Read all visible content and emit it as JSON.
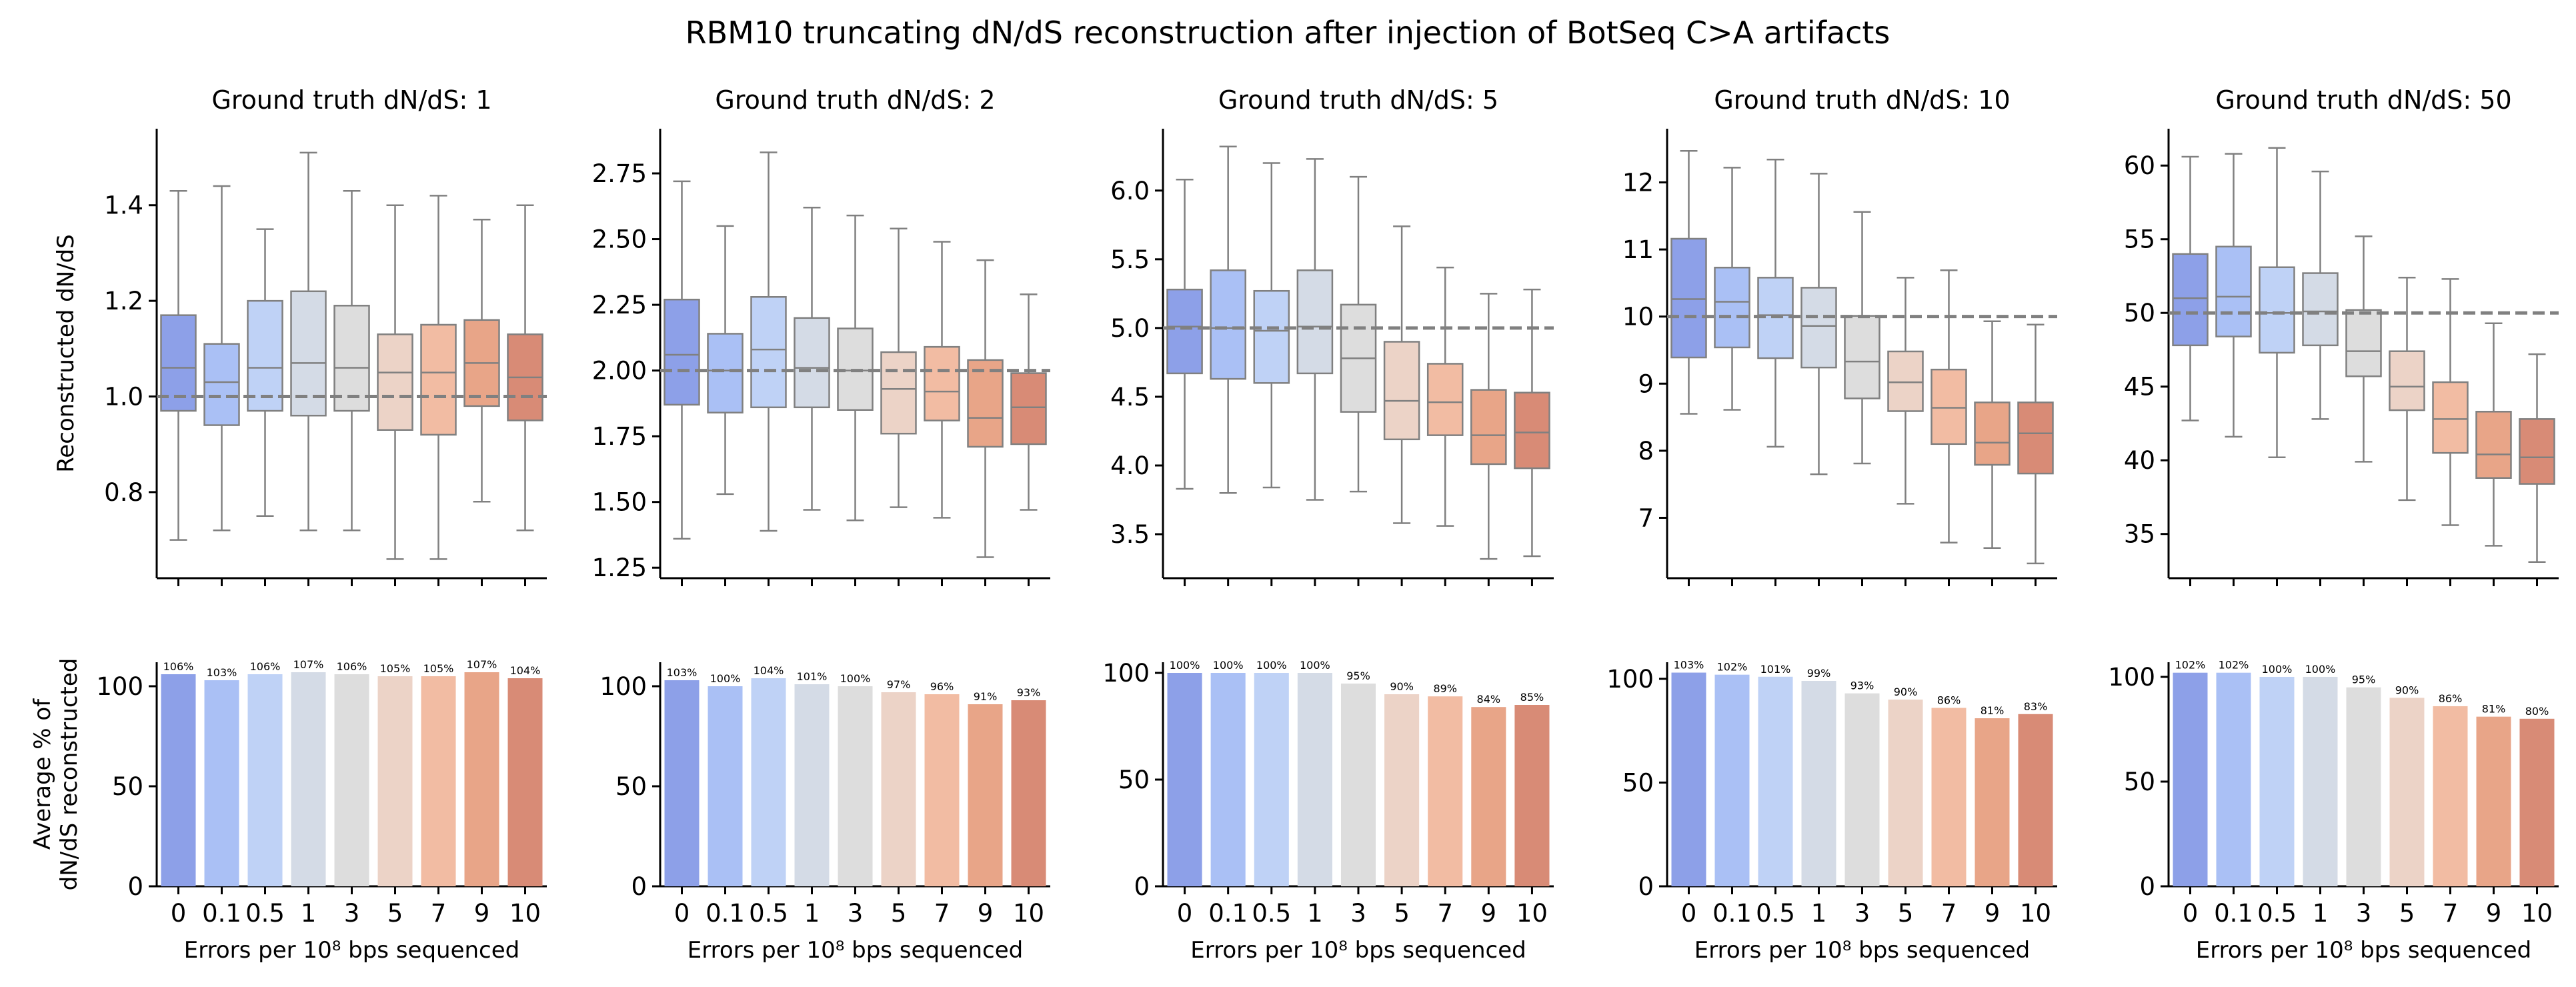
{
  "title": "RBM10 truncating dN/dS reconstruction after injection of BotSeq C>A artifacts",
  "colors": [
    "#8da0e8",
    "#aac0f5",
    "#bfd2f6",
    "#d4dbe6",
    "#dddddd",
    "#ecd3c7",
    "#f2bca3",
    "#e8a588",
    "#d88b76"
  ],
  "chart_data": [
    {
      "type": "box",
      "title": "Ground truth dN/dS: 1",
      "ylabel": "Reconstructed dN/dS",
      "categories": [
        "0",
        "0.1",
        "0.5",
        "1",
        "3",
        "5",
        "7",
        "9",
        "10"
      ],
      "ylim": [
        0.62,
        1.56
      ],
      "yticks": [
        0.8,
        1.0,
        1.2,
        1.4
      ],
      "yticklabels": [
        "0.8",
        "1.0",
        "1.2",
        "1.4"
      ],
      "reference_line": 1.0,
      "boxes": [
        {
          "whislo": 0.7,
          "q1": 0.97,
          "med": 1.06,
          "q3": 1.17,
          "whishi": 1.43
        },
        {
          "whislo": 0.72,
          "q1": 0.94,
          "med": 1.03,
          "q3": 1.11,
          "whishi": 1.44
        },
        {
          "whislo": 0.75,
          "q1": 0.97,
          "med": 1.06,
          "q3": 1.2,
          "whishi": 1.35
        },
        {
          "whislo": 0.72,
          "q1": 0.96,
          "med": 1.07,
          "q3": 1.22,
          "whishi": 1.51
        },
        {
          "whislo": 0.72,
          "q1": 0.97,
          "med": 1.06,
          "q3": 1.19,
          "whishi": 1.43
        },
        {
          "whislo": 0.66,
          "q1": 0.93,
          "med": 1.05,
          "q3": 1.13,
          "whishi": 1.4
        },
        {
          "whislo": 0.66,
          "q1": 0.92,
          "med": 1.05,
          "q3": 1.15,
          "whishi": 1.42
        },
        {
          "whislo": 0.78,
          "q1": 0.98,
          "med": 1.07,
          "q3": 1.16,
          "whishi": 1.37
        },
        {
          "whislo": 0.72,
          "q1": 0.95,
          "med": 1.04,
          "q3": 1.13,
          "whishi": 1.4
        }
      ]
    },
    {
      "type": "box",
      "title": "Ground truth dN/dS: 2",
      "ylabel": "",
      "categories": [
        "0",
        "0.1",
        "0.5",
        "1",
        "3",
        "5",
        "7",
        "9",
        "10"
      ],
      "ylim": [
        1.21,
        2.92
      ],
      "yticks": [
        1.25,
        1.5,
        1.75,
        2.0,
        2.25,
        2.5,
        2.75
      ],
      "yticklabels": [
        "1.25",
        "1.50",
        "1.75",
        "2.00",
        "2.25",
        "2.50",
        "2.75"
      ],
      "reference_line": 2.0,
      "boxes": [
        {
          "whislo": 1.36,
          "q1": 1.87,
          "med": 2.06,
          "q3": 2.27,
          "whishi": 2.72
        },
        {
          "whislo": 1.53,
          "q1": 1.84,
          "med": 2.0,
          "q3": 2.14,
          "whishi": 2.55
        },
        {
          "whislo": 1.39,
          "q1": 1.86,
          "med": 2.08,
          "q3": 2.28,
          "whishi": 2.83
        },
        {
          "whislo": 1.47,
          "q1": 1.86,
          "med": 2.01,
          "q3": 2.2,
          "whishi": 2.62
        },
        {
          "whislo": 1.43,
          "q1": 1.85,
          "med": 2.0,
          "q3": 2.16,
          "whishi": 2.59
        },
        {
          "whislo": 1.48,
          "q1": 1.76,
          "med": 1.93,
          "q3": 2.07,
          "whishi": 2.54
        },
        {
          "whislo": 1.44,
          "q1": 1.81,
          "med": 1.92,
          "q3": 2.09,
          "whishi": 2.49
        },
        {
          "whislo": 1.29,
          "q1": 1.71,
          "med": 1.82,
          "q3": 2.04,
          "whishi": 2.42
        },
        {
          "whislo": 1.47,
          "q1": 1.72,
          "med": 1.86,
          "q3": 1.99,
          "whishi": 2.29
        }
      ]
    },
    {
      "type": "box",
      "title": "Ground truth dN/dS: 5",
      "ylabel": "",
      "categories": [
        "0",
        "0.1",
        "0.5",
        "1",
        "3",
        "5",
        "7",
        "9",
        "10"
      ],
      "ylim": [
        3.18,
        6.45
      ],
      "yticks": [
        3.5,
        4.0,
        4.5,
        5.0,
        5.5,
        6.0
      ],
      "yticklabels": [
        "3.5",
        "4.0",
        "4.5",
        "5.0",
        "5.5",
        "6.0"
      ],
      "reference_line": 5.0,
      "boxes": [
        {
          "whislo": 3.83,
          "q1": 4.67,
          "med": 5.01,
          "q3": 5.28,
          "whishi": 6.08
        },
        {
          "whislo": 3.8,
          "q1": 4.63,
          "med": 5.0,
          "q3": 5.42,
          "whishi": 6.32
        },
        {
          "whislo": 3.84,
          "q1": 4.6,
          "med": 4.98,
          "q3": 5.27,
          "whishi": 6.2
        },
        {
          "whislo": 3.75,
          "q1": 4.67,
          "med": 5.01,
          "q3": 5.42,
          "whishi": 6.23
        },
        {
          "whislo": 3.81,
          "q1": 4.39,
          "med": 4.78,
          "q3": 5.17,
          "whishi": 6.1
        },
        {
          "whislo": 3.58,
          "q1": 4.19,
          "med": 4.47,
          "q3": 4.9,
          "whishi": 5.74
        },
        {
          "whislo": 3.56,
          "q1": 4.22,
          "med": 4.46,
          "q3": 4.74,
          "whishi": 5.44
        },
        {
          "whislo": 3.32,
          "q1": 4.01,
          "med": 4.22,
          "q3": 4.55,
          "whishi": 5.25
        },
        {
          "whislo": 3.34,
          "q1": 3.98,
          "med": 4.24,
          "q3": 4.53,
          "whishi": 5.28
        }
      ]
    },
    {
      "type": "box",
      "title": "Ground truth dN/dS: 10",
      "ylabel": "",
      "categories": [
        "0",
        "0.1",
        "0.5",
        "1",
        "3",
        "5",
        "7",
        "9",
        "10"
      ],
      "ylim": [
        6.1,
        12.8
      ],
      "yticks": [
        7,
        8,
        9,
        10,
        11,
        12
      ],
      "yticklabels": [
        "7",
        "8",
        "9",
        "10",
        "11",
        "12"
      ],
      "reference_line": 10.0,
      "boxes": [
        {
          "whislo": 8.55,
          "q1": 9.39,
          "med": 10.26,
          "q3": 11.16,
          "whishi": 12.47
        },
        {
          "whislo": 8.61,
          "q1": 9.54,
          "med": 10.22,
          "q3": 10.73,
          "whishi": 12.22
        },
        {
          "whislo": 8.06,
          "q1": 9.38,
          "med": 10.02,
          "q3": 10.58,
          "whishi": 12.34
        },
        {
          "whislo": 7.65,
          "q1": 9.24,
          "med": 9.86,
          "q3": 10.43,
          "whishi": 12.13
        },
        {
          "whislo": 7.81,
          "q1": 8.78,
          "med": 9.33,
          "q3": 10.01,
          "whishi": 11.56
        },
        {
          "whislo": 7.21,
          "q1": 8.59,
          "med": 9.02,
          "q3": 9.48,
          "whishi": 10.58
        },
        {
          "whislo": 6.63,
          "q1": 8.1,
          "med": 8.64,
          "q3": 9.21,
          "whishi": 10.69
        },
        {
          "whislo": 6.55,
          "q1": 7.79,
          "med": 8.12,
          "q3": 8.72,
          "whishi": 9.93
        },
        {
          "whislo": 6.32,
          "q1": 7.66,
          "med": 8.26,
          "q3": 8.72,
          "whishi": 9.88
        }
      ]
    },
    {
      "type": "box",
      "title": "Ground truth dN/dS: 50",
      "ylabel": "",
      "categories": [
        "0",
        "0.1",
        "0.5",
        "1",
        "3",
        "5",
        "7",
        "9",
        "10"
      ],
      "ylim": [
        32,
        62.5
      ],
      "yticks": [
        35,
        40,
        45,
        50,
        55,
        60
      ],
      "yticklabels": [
        "35",
        "40",
        "45",
        "50",
        "55",
        "60"
      ],
      "reference_line": 50.0,
      "boxes": [
        {
          "whislo": 42.7,
          "q1": 47.8,
          "med": 51.0,
          "q3": 54.0,
          "whishi": 60.6
        },
        {
          "whislo": 41.6,
          "q1": 48.4,
          "med": 51.1,
          "q3": 54.5,
          "whishi": 60.8
        },
        {
          "whislo": 40.2,
          "q1": 47.3,
          "med": 50.0,
          "q3": 53.1,
          "whishi": 61.2
        },
        {
          "whislo": 42.8,
          "q1": 47.8,
          "med": 50.1,
          "q3": 52.7,
          "whishi": 59.6
        },
        {
          "whislo": 39.9,
          "q1": 45.7,
          "med": 47.4,
          "q3": 50.2,
          "whishi": 55.2
        },
        {
          "whislo": 37.3,
          "q1": 43.4,
          "med": 45.0,
          "q3": 47.4,
          "whishi": 52.4
        },
        {
          "whislo": 35.6,
          "q1": 40.5,
          "med": 42.8,
          "q3": 45.3,
          "whishi": 52.3
        },
        {
          "whislo": 34.2,
          "q1": 38.8,
          "med": 40.4,
          "q3": 43.3,
          "whishi": 49.3
        },
        {
          "whislo": 33.1,
          "q1": 38.4,
          "med": 40.2,
          "q3": 42.8,
          "whishi": 47.2
        }
      ]
    },
    {
      "type": "bar",
      "title": "",
      "xlabel": "Errors per 10⁸ bps sequenced",
      "ylabel": "Average % of\ndN/dS reconstructed",
      "categories": [
        "0",
        "0.1",
        "0.5",
        "1",
        "3",
        "5",
        "7",
        "9",
        "10"
      ],
      "ylim": [
        0,
        112
      ],
      "yticks": [
        0,
        50,
        100
      ],
      "yticklabels": [
        "0",
        "50",
        "100"
      ],
      "values": [
        106,
        103,
        106,
        107,
        106,
        105,
        105,
        107,
        104
      ],
      "labels": [
        "106%",
        "103%",
        "106%",
        "107%",
        "106%",
        "105%",
        "105%",
        "107%",
        "104%"
      ]
    },
    {
      "type": "bar",
      "title": "",
      "xlabel": "Errors per 10⁸ bps sequenced",
      "ylabel": "",
      "categories": [
        "0",
        "0.1",
        "0.5",
        "1",
        "3",
        "5",
        "7",
        "9",
        "10"
      ],
      "ylim": [
        0,
        112
      ],
      "yticks": [
        0,
        50,
        100
      ],
      "yticklabels": [
        "0",
        "50",
        "100"
      ],
      "values": [
        103,
        100,
        104,
        101,
        100,
        97,
        96,
        91,
        93
      ],
      "labels": [
        "103%",
        "100%",
        "104%",
        "101%",
        "100%",
        "97%",
        "96%",
        "91%",
        "93%"
      ]
    },
    {
      "type": "bar",
      "title": "",
      "xlabel": "Errors per 10⁸ bps sequenced",
      "ylabel": "",
      "categories": [
        "0",
        "0.1",
        "0.5",
        "1",
        "3",
        "5",
        "7",
        "9",
        "10"
      ],
      "ylim": [
        0,
        105
      ],
      "yticks": [
        0,
        50,
        100
      ],
      "yticklabels": [
        "0",
        "50",
        "100"
      ],
      "values": [
        100,
        100,
        100,
        100,
        95,
        90,
        89,
        84,
        85
      ],
      "labels": [
        "100%",
        "100%",
        "100%",
        "100%",
        "95%",
        "90%",
        "89%",
        "84%",
        "85%"
      ]
    },
    {
      "type": "bar",
      "title": "",
      "xlabel": "Errors per 10⁸ bps sequenced",
      "ylabel": "",
      "categories": [
        "0",
        "0.1",
        "0.5",
        "1",
        "3",
        "5",
        "7",
        "9",
        "10"
      ],
      "ylim": [
        0,
        108
      ],
      "yticks": [
        0,
        50,
        100
      ],
      "yticklabels": [
        "0",
        "50",
        "100"
      ],
      "values": [
        103,
        102,
        101,
        99,
        93,
        90,
        86,
        81,
        83
      ],
      "labels": [
        "103%",
        "102%",
        "101%",
        "99%",
        "93%",
        "90%",
        "86%",
        "81%",
        "83%"
      ]
    },
    {
      "type": "bar",
      "title": "",
      "xlabel": "Errors per 10⁸ bps sequenced",
      "ylabel": "",
      "categories": [
        "0",
        "0.1",
        "0.5",
        "1",
        "3",
        "5",
        "7",
        "9",
        "10"
      ],
      "ylim": [
        0,
        107
      ],
      "yticks": [
        0,
        50,
        100
      ],
      "yticklabels": [
        "0",
        "50",
        "100"
      ],
      "values": [
        102,
        102,
        100,
        100,
        95,
        90,
        86,
        81,
        80
      ],
      "labels": [
        "102%",
        "102%",
        "100%",
        "100%",
        "95%",
        "90%",
        "86%",
        "81%",
        "80%"
      ]
    }
  ]
}
